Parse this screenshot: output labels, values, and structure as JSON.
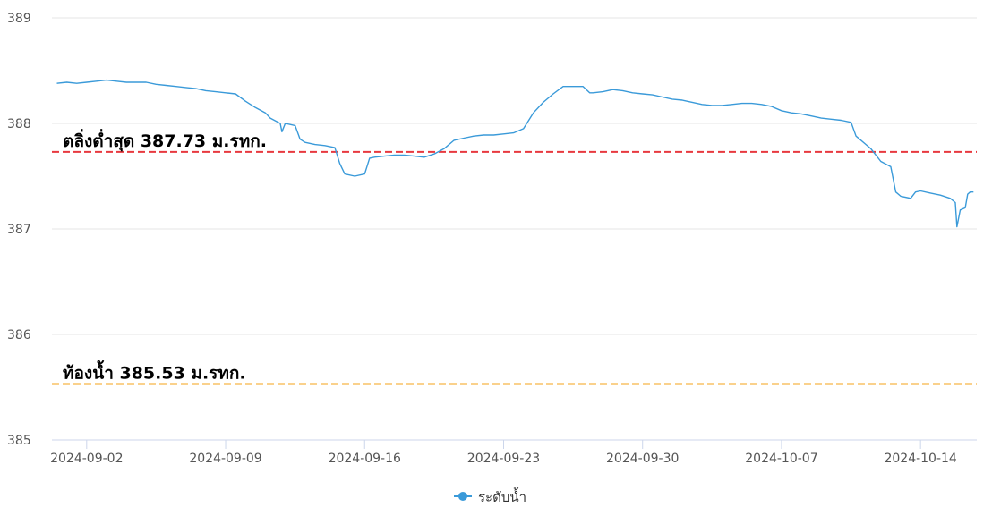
{
  "chart_data": {
    "type": "line",
    "title": "",
    "xlabel": "",
    "ylabel": "",
    "ylim": [
      385,
      389
    ],
    "yticks": [
      385,
      386,
      387,
      388,
      389
    ],
    "xlim": [
      "2024-08-31T06:00",
      "2024-10-16T20:00"
    ],
    "xticks": [
      "2024-09-02",
      "2024-09-09",
      "2024-09-16",
      "2024-09-23",
      "2024-09-30",
      "2024-10-07",
      "2024-10-14"
    ],
    "grid": true,
    "legend": "bottom-center",
    "reference_lines": [
      {
        "label": "ตลิ่งต่ำสุด 387.73 ม.รทก.",
        "value": 387.73,
        "color": "#e8393f",
        "style": "dashed"
      },
      {
        "label": "ท้องน้ำ 385.53 ม.รทก.",
        "value": 385.53,
        "color": "#f5a31a",
        "style": "dashed"
      }
    ],
    "series": [
      {
        "name": "ระดับน้ำ",
        "color": "#3a9ad9",
        "points": [
          [
            "2024-08-31T12:00",
            388.38
          ],
          [
            "2024-09-01T00:00",
            388.39
          ],
          [
            "2024-09-01T12:00",
            388.38
          ],
          [
            "2024-09-02T00:00",
            388.39
          ],
          [
            "2024-09-02T12:00",
            388.4
          ],
          [
            "2024-09-03T00:00",
            388.41
          ],
          [
            "2024-09-03T12:00",
            388.4
          ],
          [
            "2024-09-04T00:00",
            388.39
          ],
          [
            "2024-09-04T12:00",
            388.39
          ],
          [
            "2024-09-05T00:00",
            388.39
          ],
          [
            "2024-09-05T12:00",
            388.37
          ],
          [
            "2024-09-06T00:00",
            388.36
          ],
          [
            "2024-09-06T12:00",
            388.35
          ],
          [
            "2024-09-07T00:00",
            388.34
          ],
          [
            "2024-09-07T12:00",
            388.33
          ],
          [
            "2024-09-08T00:00",
            388.31
          ],
          [
            "2024-09-08T12:00",
            388.3
          ],
          [
            "2024-09-09T00:00",
            388.29
          ],
          [
            "2024-09-09T12:00",
            388.28
          ],
          [
            "2024-09-10T00:00",
            388.21
          ],
          [
            "2024-09-10T12:00",
            388.15
          ],
          [
            "2024-09-11T00:00",
            388.1
          ],
          [
            "2024-09-11T06:00",
            388.05
          ],
          [
            "2024-09-11T18:00",
            388.0
          ],
          [
            "2024-09-11T20:00",
            387.92
          ],
          [
            "2024-09-12T00:00",
            388.0
          ],
          [
            "2024-09-12T12:00",
            387.98
          ],
          [
            "2024-09-12T18:00",
            387.85
          ],
          [
            "2024-09-13T00:00",
            387.82
          ],
          [
            "2024-09-13T12:00",
            387.8
          ],
          [
            "2024-09-14T00:00",
            387.79
          ],
          [
            "2024-09-14T12:00",
            387.77
          ],
          [
            "2024-09-14T18:00",
            387.62
          ],
          [
            "2024-09-15T00:00",
            387.52
          ],
          [
            "2024-09-15T12:00",
            387.5
          ],
          [
            "2024-09-16T00:00",
            387.52
          ],
          [
            "2024-09-16T06:00",
            387.67
          ],
          [
            "2024-09-16T12:00",
            387.68
          ],
          [
            "2024-09-17T00:00",
            387.69
          ],
          [
            "2024-09-17T12:00",
            387.7
          ],
          [
            "2024-09-18T00:00",
            387.7
          ],
          [
            "2024-09-18T12:00",
            387.69
          ],
          [
            "2024-09-19T00:00",
            387.68
          ],
          [
            "2024-09-19T12:00",
            387.71
          ],
          [
            "2024-09-20T00:00",
            387.76
          ],
          [
            "2024-09-20T12:00",
            387.84
          ],
          [
            "2024-09-21T00:00",
            387.86
          ],
          [
            "2024-09-21T12:00",
            387.88
          ],
          [
            "2024-09-22T00:00",
            387.89
          ],
          [
            "2024-09-22T12:00",
            387.89
          ],
          [
            "2024-09-23T00:00",
            387.9
          ],
          [
            "2024-09-23T12:00",
            387.91
          ],
          [
            "2024-09-24T00:00",
            387.95
          ],
          [
            "2024-09-24T12:00",
            388.1
          ],
          [
            "2024-09-25T00:00",
            388.2
          ],
          [
            "2024-09-25T12:00",
            388.28
          ],
          [
            "2024-09-26T00:00",
            388.35
          ],
          [
            "2024-09-26T12:00",
            388.35
          ],
          [
            "2024-09-27T00:00",
            388.35
          ],
          [
            "2024-09-27T08:00",
            388.29
          ],
          [
            "2024-09-27T12:00",
            388.29
          ],
          [
            "2024-09-28T00:00",
            388.3
          ],
          [
            "2024-09-28T12:00",
            388.32
          ],
          [
            "2024-09-29T00:00",
            388.31
          ],
          [
            "2024-09-29T12:00",
            388.29
          ],
          [
            "2024-09-30T00:00",
            388.28
          ],
          [
            "2024-09-30T12:00",
            388.27
          ],
          [
            "2024-10-01T00:00",
            388.25
          ],
          [
            "2024-10-01T12:00",
            388.23
          ],
          [
            "2024-10-02T00:00",
            388.22
          ],
          [
            "2024-10-02T12:00",
            388.2
          ],
          [
            "2024-10-03T00:00",
            388.18
          ],
          [
            "2024-10-03T12:00",
            388.17
          ],
          [
            "2024-10-04T00:00",
            388.17
          ],
          [
            "2024-10-04T12:00",
            388.18
          ],
          [
            "2024-10-05T00:00",
            388.19
          ],
          [
            "2024-10-05T12:00",
            388.19
          ],
          [
            "2024-10-06T00:00",
            388.18
          ],
          [
            "2024-10-06T12:00",
            388.16
          ],
          [
            "2024-10-07T00:00",
            388.12
          ],
          [
            "2024-10-07T12:00",
            388.1
          ],
          [
            "2024-10-08T00:00",
            388.09
          ],
          [
            "2024-10-08T12:00",
            388.07
          ],
          [
            "2024-10-09T00:00",
            388.05
          ],
          [
            "2024-10-09T12:00",
            388.04
          ],
          [
            "2024-10-10T00:00",
            388.03
          ],
          [
            "2024-10-10T12:00",
            388.01
          ],
          [
            "2024-10-10T18:00",
            387.88
          ],
          [
            "2024-10-11T06:00",
            387.8
          ],
          [
            "2024-10-11T12:00",
            387.76
          ],
          [
            "2024-10-11T18:00",
            387.7
          ],
          [
            "2024-10-12T00:00",
            387.64
          ],
          [
            "2024-10-12T12:00",
            387.59
          ],
          [
            "2024-10-12T18:00",
            387.35
          ],
          [
            "2024-10-13T00:00",
            387.31
          ],
          [
            "2024-10-13T12:00",
            387.29
          ],
          [
            "2024-10-13T18:00",
            387.35
          ],
          [
            "2024-10-14T00:00",
            387.36
          ],
          [
            "2024-10-14T12:00",
            387.34
          ],
          [
            "2024-10-15T00:00",
            387.32
          ],
          [
            "2024-10-15T12:00",
            387.29
          ],
          [
            "2024-10-15T18:00",
            387.25
          ],
          [
            "2024-10-15T20:00",
            387.02
          ],
          [
            "2024-10-16T00:00",
            387.18
          ],
          [
            "2024-10-16T06:00",
            387.2
          ],
          [
            "2024-10-16T09:00",
            387.33
          ],
          [
            "2024-10-16T12:00",
            387.35
          ],
          [
            "2024-10-16T16:00",
            387.35
          ]
        ]
      }
    ]
  }
}
